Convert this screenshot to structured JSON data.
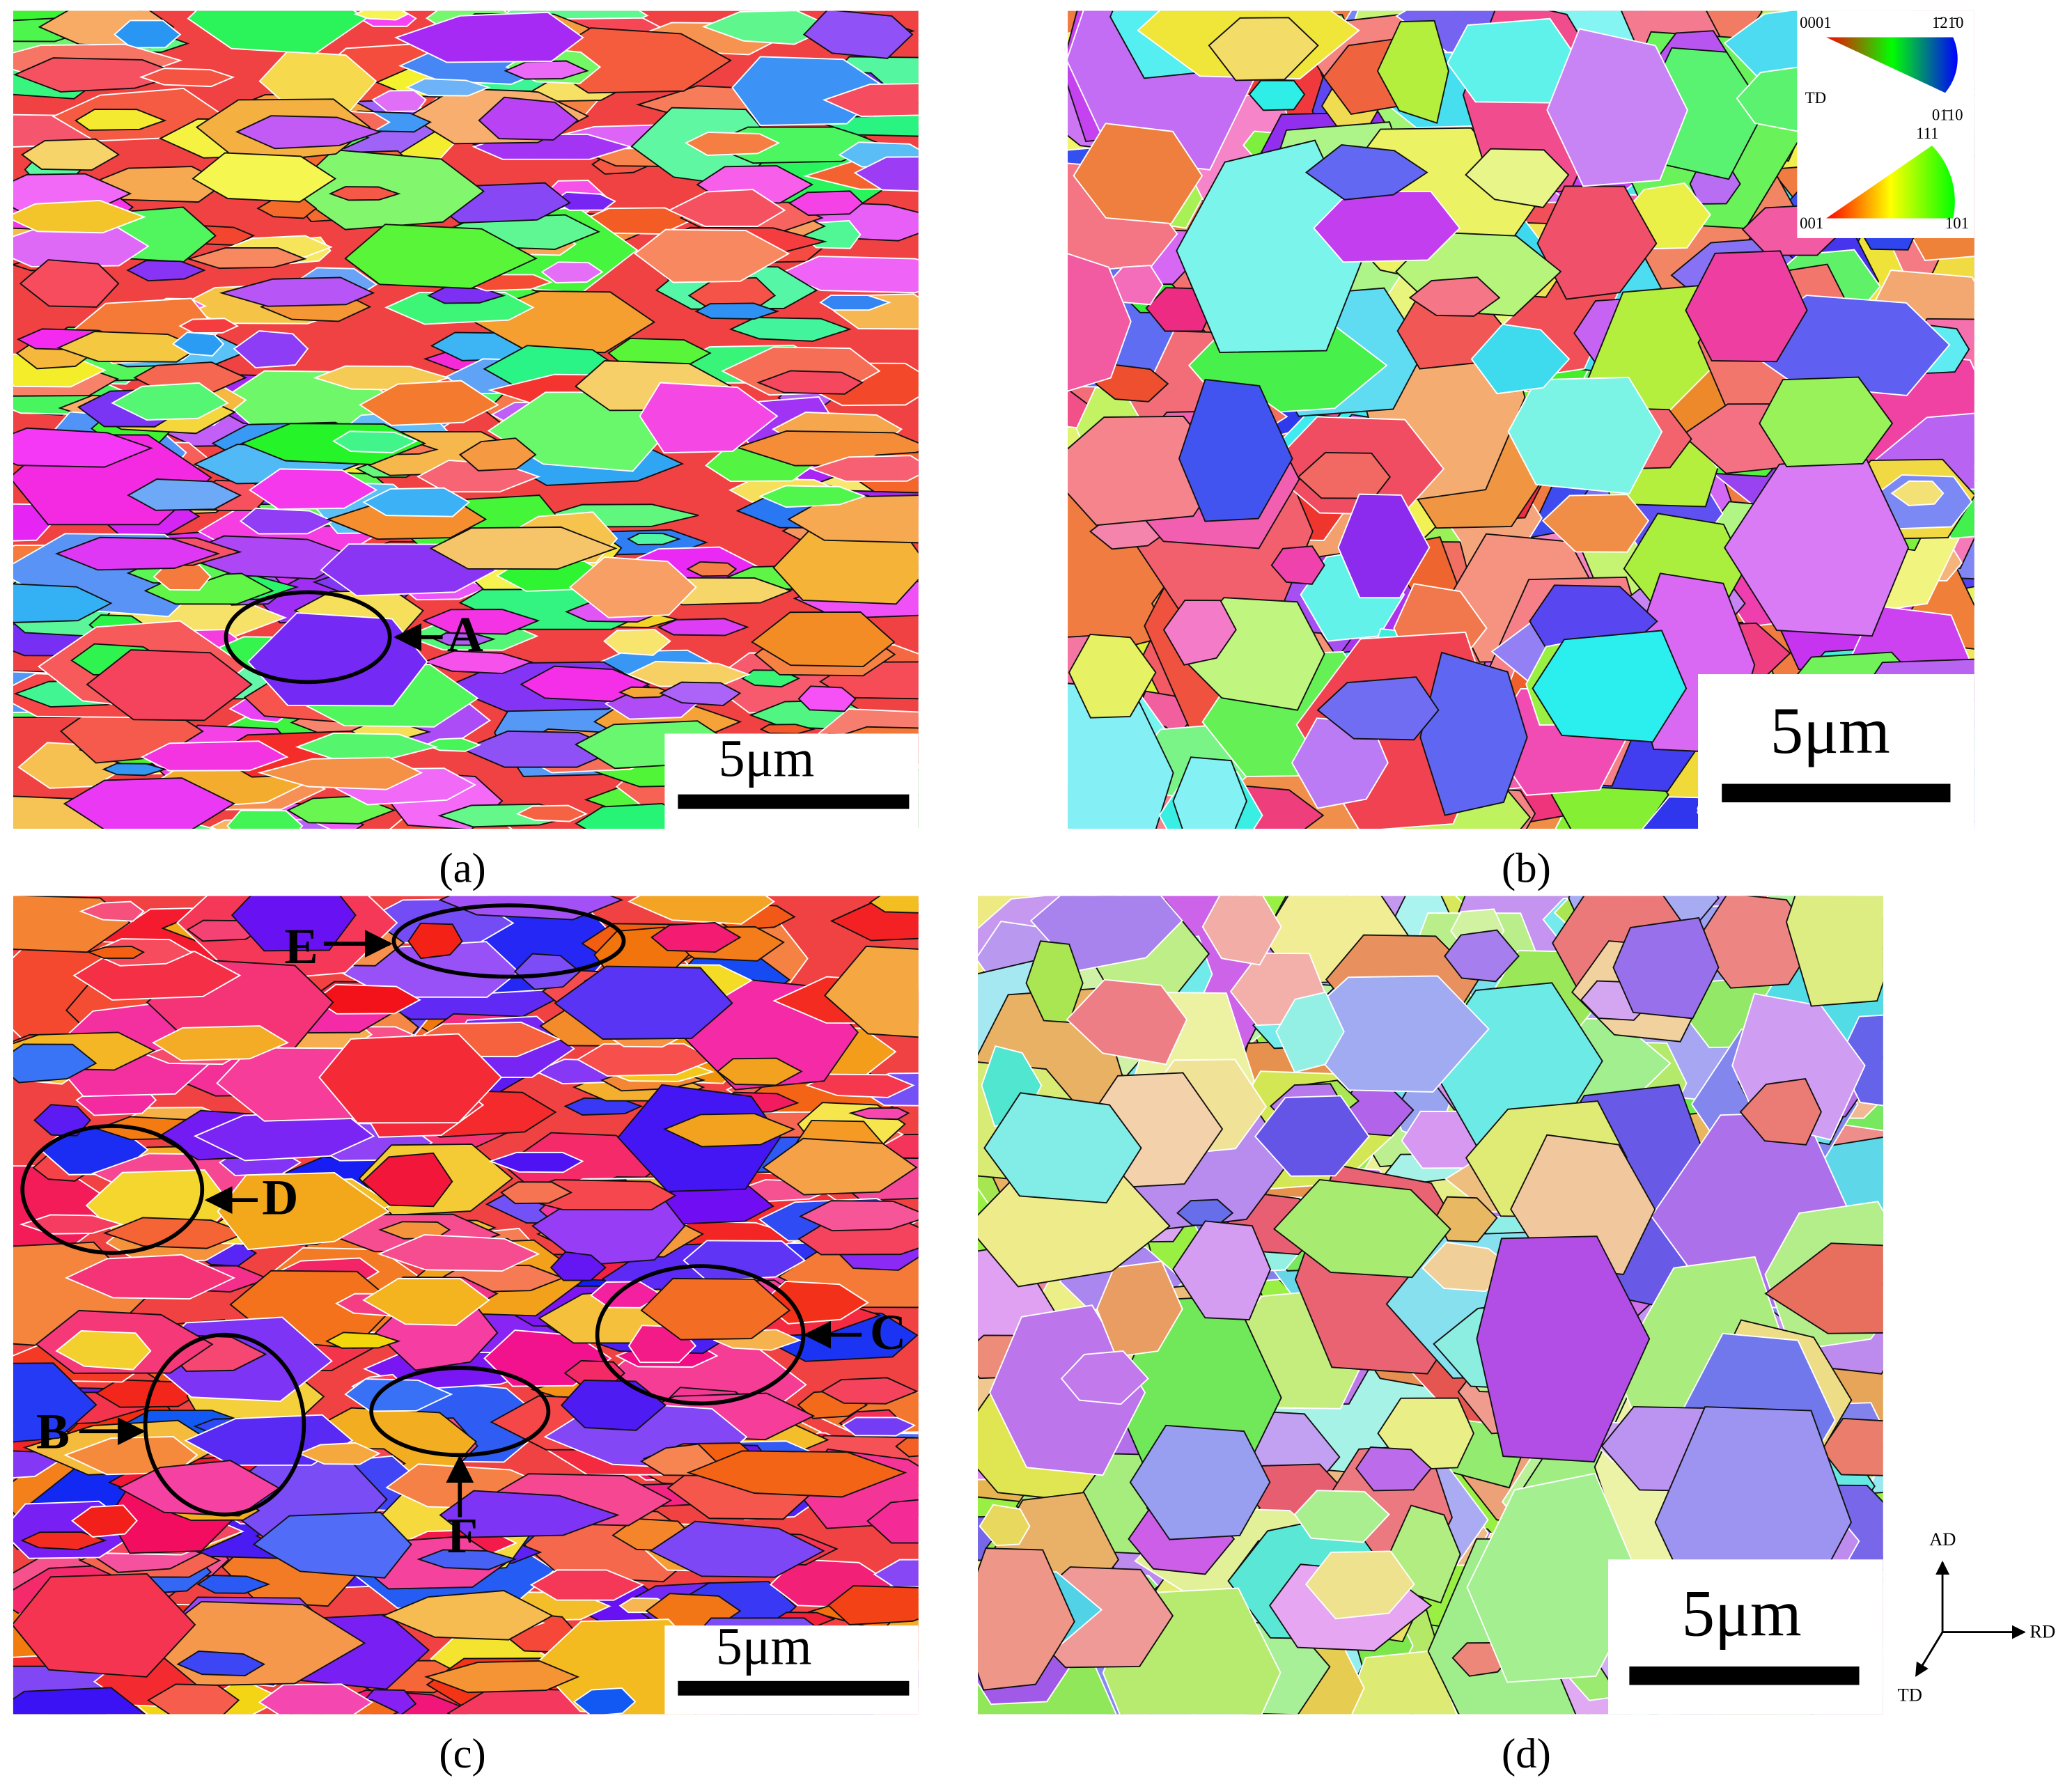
{
  "panels": [
    {
      "label": "(a)",
      "scale_bar": "5μm",
      "annotations": [
        "A"
      ]
    },
    {
      "label": "(b)",
      "scale_bar": "5μm",
      "legend": {
        "hcp": {
          "left": "0001",
          "right": "1̄21̄0",
          "axis": "TD",
          "bottom": "01̄10"
        },
        "cubic": {
          "top": "111",
          "left": "001",
          "right": "101"
        }
      }
    },
    {
      "label": "(c)",
      "scale_bar": "5μm",
      "annotations": [
        "E",
        "D",
        "C",
        "B",
        "F"
      ]
    },
    {
      "label": "(d)",
      "scale_bar": "5μm"
    }
  ],
  "axes": {
    "up": "AD",
    "right": "RD",
    "diagonal": "TD"
  }
}
